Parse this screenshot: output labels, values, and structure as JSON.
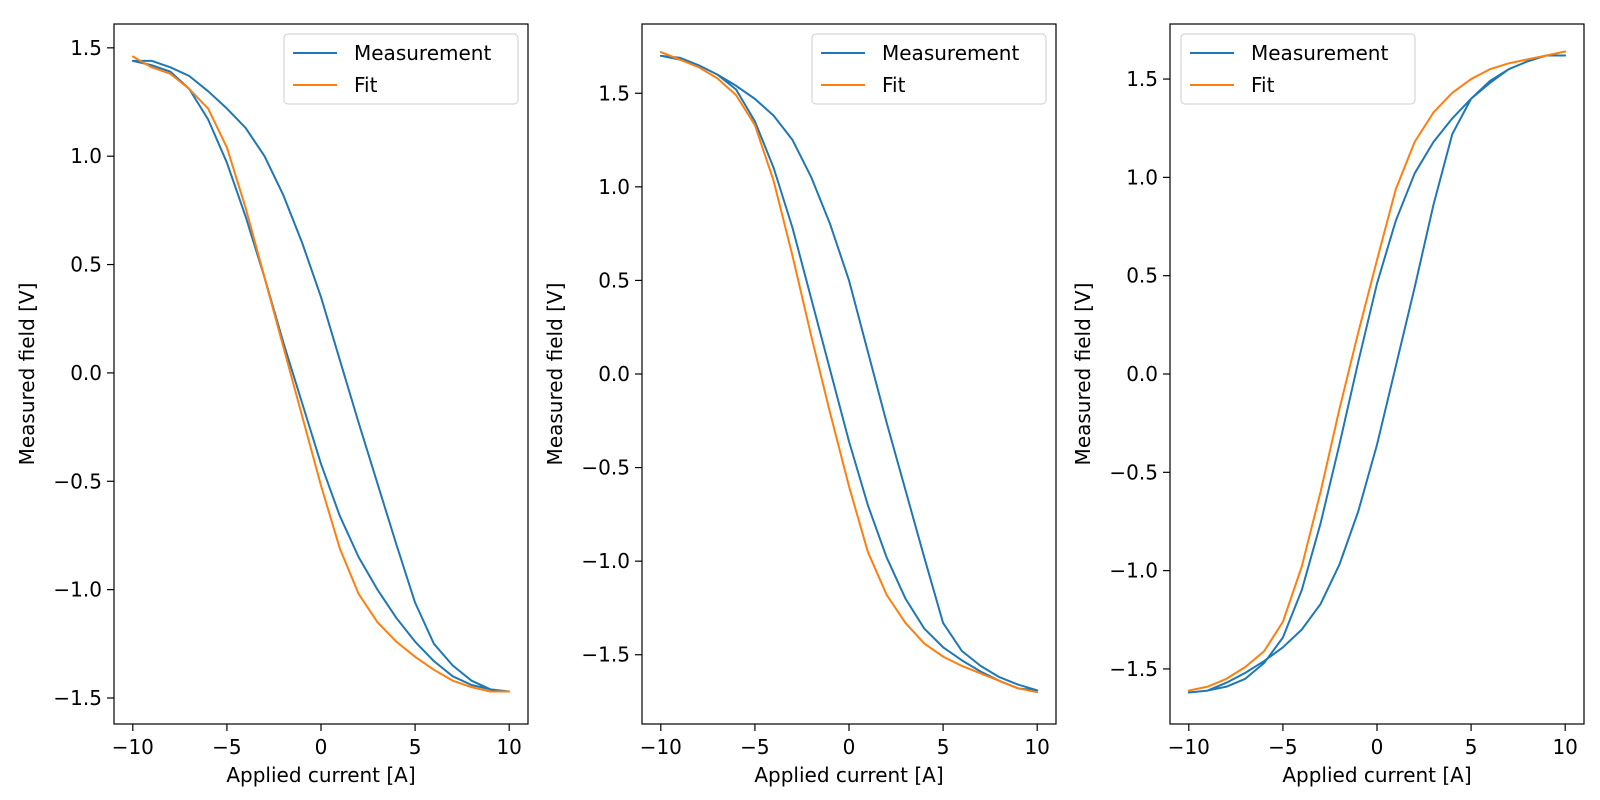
{
  "chart_data": [
    {
      "type": "line",
      "xlabel": "Applied current [A]",
      "ylabel": "Measured field [V]",
      "xlim": [
        -11,
        11
      ],
      "ylim": [
        -1.62,
        1.61
      ],
      "xticks": [
        -10,
        -5,
        0,
        5,
        10
      ],
      "xtick_labels": [
        "−10",
        "−5",
        "0",
        "5",
        "10"
      ],
      "yticks": [
        -1.5,
        -1.0,
        -0.5,
        0.0,
        0.5,
        1.0,
        1.5
      ],
      "ytick_labels": [
        "−1.5",
        "−1.0",
        "−0.5",
        "0.0",
        "0.5",
        "1.0",
        "1.5"
      ],
      "grid": false,
      "legend_position": "top-right",
      "series": [
        {
          "name": "Measurement",
          "color": "#1f77b4",
          "x": [
            -10,
            -9,
            -8,
            -7,
            -6,
            -5,
            -4,
            -3,
            -2,
            -1,
            0,
            1,
            2,
            3,
            4,
            5,
            6,
            7,
            8,
            9,
            10,
            9,
            8,
            7,
            6,
            5,
            4,
            3,
            2,
            1,
            0,
            -1,
            -2,
            -3,
            -4,
            -5,
            -6,
            -7,
            -8,
            -9,
            -10
          ],
          "y": [
            1.44,
            1.44,
            1.41,
            1.37,
            1.3,
            1.22,
            1.13,
            1.0,
            0.82,
            0.6,
            0.35,
            0.06,
            -0.23,
            -0.51,
            -0.79,
            -1.06,
            -1.25,
            -1.35,
            -1.42,
            -1.46,
            -1.47,
            -1.46,
            -1.44,
            -1.4,
            -1.33,
            -1.24,
            -1.13,
            -1.0,
            -0.85,
            -0.66,
            -0.42,
            -0.14,
            0.14,
            0.44,
            0.72,
            0.97,
            1.17,
            1.31,
            1.39,
            1.42,
            1.44
          ]
        },
        {
          "name": "Fit",
          "color": "#ff7f0e",
          "x": [
            -10,
            -9,
            -8,
            -7,
            -6,
            -5,
            -4,
            -3,
            -2,
            -1,
            0,
            1,
            2,
            3,
            4,
            5,
            6,
            7,
            8,
            9,
            10
          ],
          "y": [
            1.46,
            1.41,
            1.38,
            1.31,
            1.22,
            1.04,
            0.76,
            0.44,
            0.12,
            -0.2,
            -0.52,
            -0.81,
            -1.02,
            -1.15,
            -1.24,
            -1.31,
            -1.37,
            -1.42,
            -1.45,
            -1.47,
            -1.47
          ]
        }
      ]
    },
    {
      "type": "line",
      "xlabel": "Applied current [A]",
      "ylabel": "Measured field [V]",
      "xlim": [
        -11,
        11
      ],
      "ylim": [
        -1.87,
        1.87
      ],
      "xticks": [
        -10,
        -5,
        0,
        5,
        10
      ],
      "xtick_labels": [
        "−10",
        "−5",
        "0",
        "5",
        "10"
      ],
      "yticks": [
        -1.5,
        -1.0,
        -0.5,
        0.0,
        0.5,
        1.0,
        1.5
      ],
      "ytick_labels": [
        "−1.5",
        "−1.0",
        "−0.5",
        "0.0",
        "0.5",
        "1.0",
        "1.5"
      ],
      "grid": false,
      "legend_position": "top-right",
      "series": [
        {
          "name": "Measurement",
          "color": "#1f77b4",
          "x": [
            -10,
            -9,
            -8,
            -7,
            -6,
            -5,
            -4,
            -3,
            -2,
            -1,
            0,
            1,
            2,
            3,
            4,
            5,
            6,
            7,
            8,
            9,
            10,
            9,
            8,
            7,
            6,
            5,
            4,
            3,
            2,
            1,
            0,
            -1,
            -2,
            -3,
            -4,
            -5,
            -6,
            -7,
            -8,
            -9,
            -10
          ],
          "y": [
            1.7,
            1.69,
            1.65,
            1.6,
            1.54,
            1.47,
            1.38,
            1.25,
            1.05,
            0.8,
            0.5,
            0.12,
            -0.26,
            -0.62,
            -0.98,
            -1.33,
            -1.48,
            -1.56,
            -1.62,
            -1.66,
            -1.69,
            -1.68,
            -1.64,
            -1.59,
            -1.53,
            -1.46,
            -1.36,
            -1.2,
            -0.98,
            -0.7,
            -0.36,
            0.02,
            0.4,
            0.78,
            1.1,
            1.35,
            1.52,
            1.6,
            1.65,
            1.68,
            1.7
          ]
        },
        {
          "name": "Fit",
          "color": "#ff7f0e",
          "x": [
            -10,
            -9,
            -8,
            -7,
            -6,
            -5,
            -4,
            -3,
            -2,
            -1,
            0,
            1,
            2,
            3,
            4,
            5,
            6,
            7,
            8,
            9,
            10
          ],
          "y": [
            1.72,
            1.68,
            1.64,
            1.58,
            1.49,
            1.33,
            1.03,
            0.63,
            0.2,
            -0.21,
            -0.6,
            -0.95,
            -1.18,
            -1.33,
            -1.44,
            -1.51,
            -1.56,
            -1.6,
            -1.64,
            -1.68,
            -1.7
          ]
        }
      ]
    },
    {
      "type": "line",
      "xlabel": "Applied current [A]",
      "ylabel": "Measured field [V]",
      "xlim": [
        -11,
        11
      ],
      "ylim": [
        -1.78,
        1.78
      ],
      "xticks": [
        -10,
        -5,
        0,
        5,
        10
      ],
      "xtick_labels": [
        "−10",
        "−5",
        "0",
        "5",
        "10"
      ],
      "yticks": [
        -1.5,
        -1.0,
        -0.5,
        0.0,
        0.5,
        1.0,
        1.5
      ],
      "ytick_labels": [
        "−1.5",
        "−1.0",
        "−0.5",
        "0.0",
        "0.5",
        "1.0",
        "1.5"
      ],
      "grid": false,
      "legend_position": "top-left",
      "series": [
        {
          "name": "Measurement",
          "color": "#1f77b4",
          "x": [
            -10,
            -9,
            -8,
            -7,
            -6,
            -5,
            -4,
            -3,
            -2,
            -1,
            0,
            1,
            2,
            3,
            4,
            5,
            6,
            7,
            8,
            9,
            10,
            9,
            8,
            7,
            6,
            5,
            4,
            3,
            2,
            1,
            0,
            -1,
            -2,
            -3,
            -4,
            -5,
            -6,
            -7,
            -8,
            -9,
            -10
          ],
          "y": [
            -1.62,
            -1.61,
            -1.57,
            -1.52,
            -1.46,
            -1.39,
            -1.3,
            -1.17,
            -0.97,
            -0.7,
            -0.36,
            0.04,
            0.44,
            0.86,
            1.22,
            1.4,
            1.49,
            1.55,
            1.59,
            1.62,
            1.62,
            1.62,
            1.59,
            1.55,
            1.48,
            1.4,
            1.3,
            1.18,
            1.02,
            0.78,
            0.46,
            0.06,
            -0.36,
            -0.76,
            -1.1,
            -1.34,
            -1.47,
            -1.55,
            -1.59,
            -1.61,
            -1.62
          ]
        },
        {
          "name": "Fit",
          "color": "#ff7f0e",
          "x": [
            -10,
            -9,
            -8,
            -7,
            -6,
            -5,
            -4,
            -3,
            -2,
            -1,
            0,
            1,
            2,
            3,
            4,
            5,
            6,
            7,
            8,
            9,
            10
          ],
          "y": [
            -1.61,
            -1.59,
            -1.55,
            -1.49,
            -1.41,
            -1.26,
            -0.98,
            -0.6,
            -0.18,
            0.21,
            0.58,
            0.94,
            1.18,
            1.33,
            1.43,
            1.5,
            1.55,
            1.58,
            1.6,
            1.62,
            1.64
          ]
        }
      ]
    }
  ]
}
